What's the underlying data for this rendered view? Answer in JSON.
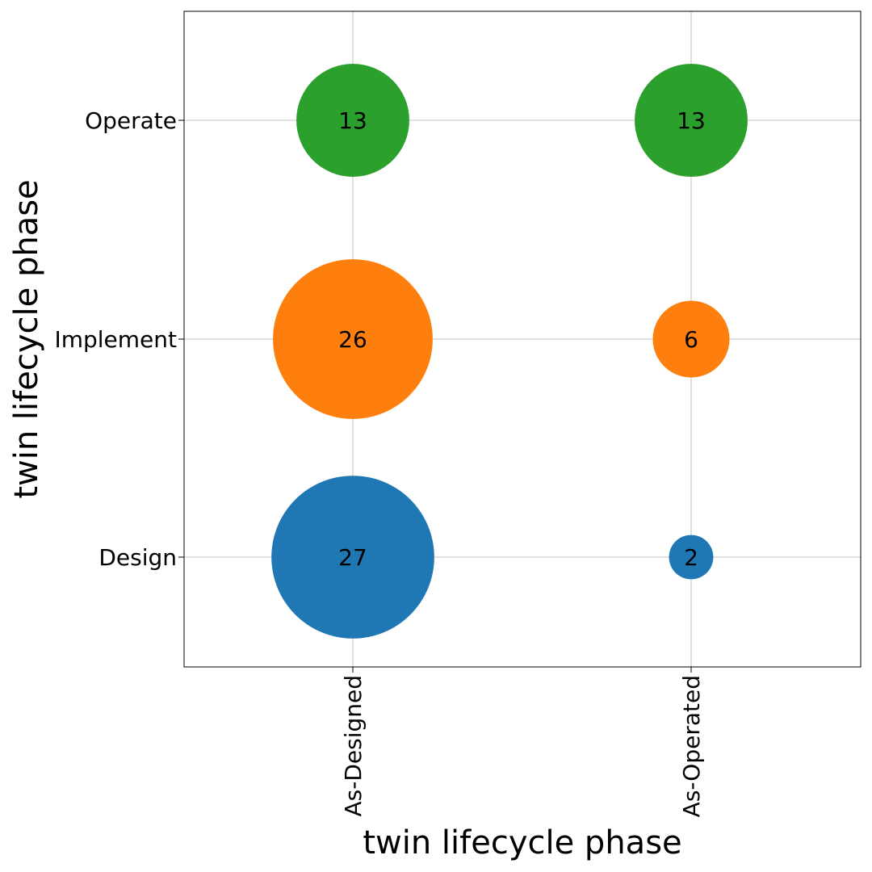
{
  "chart_data": {
    "type": "scatter",
    "subtype": "bubble",
    "xlabel": "twin lifecycle phase",
    "ylabel": "twin lifecycle phase",
    "x_categories": [
      "As-Designed",
      "As-Operated"
    ],
    "y_categories": [
      "Design",
      "Implement",
      "Operate"
    ],
    "grid": true,
    "points": [
      {
        "x": "As-Designed",
        "y": "Design",
        "value": 27,
        "color": "#1f77b4"
      },
      {
        "x": "As-Designed",
        "y": "Implement",
        "value": 26,
        "color": "#ff7f0e"
      },
      {
        "x": "As-Designed",
        "y": "Operate",
        "value": 13,
        "color": "#2ca02c"
      },
      {
        "x": "As-Operated",
        "y": "Design",
        "value": 2,
        "color": "#1f77b4"
      },
      {
        "x": "As-Operated",
        "y": "Implement",
        "value": 6,
        "color": "#ff7f0e"
      },
      {
        "x": "As-Operated",
        "y": "Operate",
        "value": 13,
        "color": "#2ca02c"
      }
    ]
  }
}
